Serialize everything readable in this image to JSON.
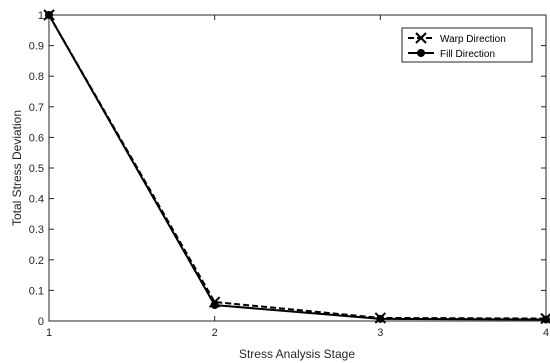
{
  "chart_data": {
    "type": "line",
    "title": "",
    "xlabel": "Stress Analysis Stage",
    "ylabel": "Total Stress Deviation",
    "x": [
      1,
      2,
      3,
      4
    ],
    "xticks": [
      "1",
      "2",
      "3",
      "4"
    ],
    "yticks": [
      "0",
      "0.1",
      "0.2",
      "0.3",
      "0.4",
      "0.5",
      "0.6",
      "0.7",
      "0.8",
      "0.9",
      "1"
    ],
    "xlim": [
      1,
      4
    ],
    "ylim": [
      0,
      1
    ],
    "grid": false,
    "legend_position": "top-right",
    "series": [
      {
        "name": "Warp Direction",
        "values": [
          1.0,
          0.062,
          0.01,
          0.008
        ],
        "line_style": "dashed",
        "marker": "x",
        "color": "#000000"
      },
      {
        "name": "Fill Direction",
        "values": [
          1.0,
          0.052,
          0.007,
          0.005
        ],
        "line_style": "solid",
        "marker": "circle",
        "color": "#000000"
      }
    ]
  }
}
